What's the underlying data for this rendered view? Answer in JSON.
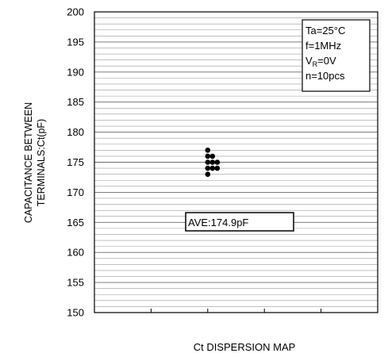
{
  "chart_data": {
    "type": "scatter",
    "title": "",
    "xlabel": "Ct DISPERSION MAP",
    "ylabel_lines": [
      "CAPACITANCE BETWEEN",
      "TERMINALS:Ct(pF)"
    ],
    "ylim": [
      150,
      200
    ],
    "y_major_ticks": [
      150,
      155,
      160,
      165,
      170,
      175,
      180,
      185,
      190,
      195,
      200
    ],
    "y_minor_step": 1,
    "x_categories": 5,
    "grid": true,
    "points": [
      {
        "column": 0,
        "y": 177
      },
      {
        "column": 0,
        "y": 176
      },
      {
        "column": 0,
        "y": 175
      },
      {
        "column": 0,
        "y": 174
      },
      {
        "column": 0,
        "y": 173
      },
      {
        "column": 1,
        "y": 176
      },
      {
        "column": 1,
        "y": 175
      },
      {
        "column": 1,
        "y": 174
      },
      {
        "column": 2,
        "y": 175
      },
      {
        "column": 2,
        "y": 174
      }
    ],
    "conditions": {
      "ta": "Ta=25°C",
      "f": "f=1MHz",
      "vr_prefix": "V",
      "vr_sub": "R",
      "vr_value": "=0V",
      "n": "n=10pcs"
    },
    "average_label": "AVE:174.9pF"
  }
}
